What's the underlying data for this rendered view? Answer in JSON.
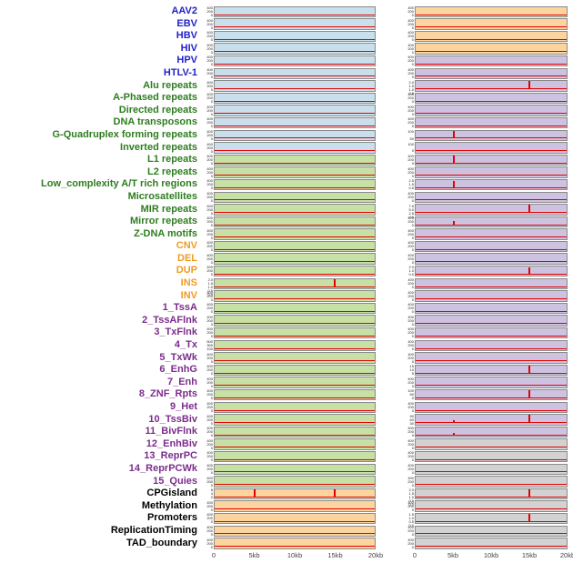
{
  "chart_data": {
    "type": "line",
    "layout": "small-multiples, 44 feature rows x 2 plot columns, red signal line over 20kb window, grid off, no legend",
    "x_ticks": [
      "0",
      "5kb",
      "10kb",
      "15kb",
      "20kb"
    ],
    "x_range_kb": [
      0,
      20
    ],
    "default_yticks": [
      "400",
      "200",
      "0"
    ],
    "colors": {
      "label": {
        "virus": "#2222cc",
        "repeat": "#2e7d1f",
        "sv": "#f09b1f",
        "chromhmm": "#7b2d8b",
        "other": "#000000"
      },
      "panel": {
        "blue": "#c9dfeb",
        "green": "#c6e0a5",
        "orange": "#fcd4a0",
        "purple": "#cdc3e0",
        "gray": "#d2d2d2"
      },
      "signal": "#e60000"
    },
    "rows": [
      {
        "label": "AAV2",
        "group": "virus",
        "left": {
          "bg": "blue",
          "spikes": []
        },
        "right": {
          "bg": "orange",
          "spikes": []
        }
      },
      {
        "label": "EBV",
        "group": "virus",
        "left": {
          "bg": "blue",
          "spikes": []
        },
        "right": {
          "bg": "orange",
          "spikes": []
        }
      },
      {
        "label": "HBV",
        "group": "virus",
        "left": {
          "bg": "blue",
          "spikes": []
        },
        "right": {
          "bg": "orange",
          "spikes": []
        }
      },
      {
        "label": "HIV",
        "group": "virus",
        "left": {
          "bg": "blue",
          "spikes": []
        },
        "right": {
          "bg": "orange",
          "spikes": []
        }
      },
      {
        "label": "HPV",
        "group": "virus",
        "left": {
          "bg": "blue",
          "spikes": []
        },
        "right": {
          "bg": "purple",
          "spikes": []
        }
      },
      {
        "label": "HTLV-1",
        "group": "virus",
        "left": {
          "bg": "blue",
          "spikes": []
        },
        "right": {
          "bg": "purple",
          "spikes": []
        }
      },
      {
        "label": "Alu repeats",
        "group": "repeat",
        "left": {
          "bg": "blue",
          "spikes": []
        },
        "right": {
          "bg": "purple",
          "yticks": [
            "2.0",
            "1.5",
            "1.0",
            "0.5"
          ],
          "spikes": [
            {
              "x": 15,
              "h": 0.9
            }
          ]
        }
      },
      {
        "label": "A-Phased repeats",
        "group": "repeat",
        "left": {
          "bg": "blue",
          "spikes": []
        },
        "right": {
          "bg": "purple",
          "spikes": []
        }
      },
      {
        "label": "Directed repeats",
        "group": "repeat",
        "left": {
          "bg": "blue",
          "spikes": []
        },
        "right": {
          "bg": "purple",
          "spikes": []
        }
      },
      {
        "label": "DNA transposons",
        "group": "repeat",
        "left": {
          "bg": "blue",
          "spikes": []
        },
        "right": {
          "bg": "purple",
          "spikes": []
        }
      },
      {
        "label": "G-Quadruplex forming repeats",
        "group": "repeat",
        "left": {
          "bg": "blue",
          "spikes": []
        },
        "right": {
          "bg": "purple",
          "yticks": [
            "100",
            "50"
          ],
          "spikes": [
            {
              "x": 5,
              "h": 0.85
            }
          ]
        }
      },
      {
        "label": "Inverted repeats",
        "group": "repeat",
        "left": {
          "bg": "blue",
          "spikes": []
        },
        "right": {
          "bg": "purple",
          "yticks": [
            "100",
            "0"
          ],
          "spikes": []
        }
      },
      {
        "label": "L1 repeats",
        "group": "repeat",
        "left": {
          "bg": "green",
          "spikes": []
        },
        "right": {
          "bg": "purple",
          "spikes": [
            {
              "x": 5,
              "h": 0.8
            }
          ]
        }
      },
      {
        "label": "L2 repeats",
        "group": "repeat",
        "left": {
          "bg": "green",
          "spikes": []
        },
        "right": {
          "bg": "purple",
          "spikes": []
        }
      },
      {
        "label": "Low_complexity A/T rich regions",
        "group": "repeat",
        "left": {
          "bg": "green",
          "spikes": []
        },
        "right": {
          "bg": "purple",
          "yticks": [
            "2.5",
            "1.5",
            "0.5"
          ],
          "spikes": [
            {
              "x": 5,
              "h": 0.75
            }
          ]
        }
      },
      {
        "label": "Microsatellites",
        "group": "repeat",
        "left": {
          "bg": "green",
          "spikes": []
        },
        "right": {
          "bg": "purple",
          "spikes": []
        }
      },
      {
        "label": "MIR repeats",
        "group": "repeat",
        "left": {
          "bg": "green",
          "spikes": []
        },
        "right": {
          "bg": "purple",
          "yticks": [
            "7.5",
            "5.0",
            "2.5",
            "0.0"
          ],
          "spikes": [
            {
              "x": 15,
              "h": 0.85
            }
          ]
        }
      },
      {
        "label": "Mirror repeats",
        "group": "repeat",
        "left": {
          "bg": "green",
          "spikes": []
        },
        "right": {
          "bg": "purple",
          "spikes": [
            {
              "x": 5,
              "h": 0.4
            }
          ]
        }
      },
      {
        "label": "Z-DNA motifs",
        "group": "repeat",
        "left": {
          "bg": "green",
          "spikes": []
        },
        "right": {
          "bg": "purple",
          "spikes": []
        }
      },
      {
        "label": "CNV",
        "group": "sv",
        "left": {
          "bg": "green",
          "spikes": []
        },
        "right": {
          "bg": "purple",
          "spikes": []
        }
      },
      {
        "label": "DEL",
        "group": "sv",
        "left": {
          "bg": "green",
          "spikes": []
        },
        "right": {
          "bg": "purple",
          "spikes": []
        }
      },
      {
        "label": "DUP",
        "group": "sv",
        "left": {
          "bg": "green",
          "spikes": []
        },
        "right": {
          "bg": "purple",
          "yticks": [
            "2.0",
            "1.0",
            "0.0"
          ],
          "spikes": [
            {
              "x": 15,
              "h": 0.8
            }
          ]
        }
      },
      {
        "label": "INS",
        "group": "sv",
        "left": {
          "bg": "green",
          "yticks": [
            "2.0",
            "1.5",
            "1.0",
            "0.5",
            "0.0"
          ],
          "spikes": [
            {
              "x": 15,
              "h": 0.95
            }
          ]
        },
        "right": {
          "bg": "purple",
          "spikes": []
        }
      },
      {
        "label": "INV",
        "group": "sv",
        "left": {
          "bg": "green",
          "spikes": []
        },
        "right": {
          "bg": "purple",
          "spikes": []
        }
      },
      {
        "label": "1_TssA",
        "group": "chromhmm",
        "left": {
          "bg": "green",
          "spikes": []
        },
        "right": {
          "bg": "purple",
          "spikes": []
        }
      },
      {
        "label": "2_TssAFlnk",
        "group": "chromhmm",
        "left": {
          "bg": "green",
          "spikes": []
        },
        "right": {
          "bg": "purple",
          "spikes": []
        }
      },
      {
        "label": "3_TxFlnk",
        "group": "chromhmm",
        "left": {
          "bg": "green",
          "spikes": []
        },
        "right": {
          "bg": "purple",
          "spikes": []
        }
      },
      {
        "label": "4_Tx",
        "group": "chromhmm",
        "left": {
          "bg": "green",
          "yticks": [
            "500",
            "300",
            "100"
          ],
          "spikes": []
        },
        "right": {
          "bg": "purple",
          "spikes": []
        }
      },
      {
        "label": "5_TxWk",
        "group": "chromhmm",
        "left": {
          "bg": "green",
          "spikes": []
        },
        "right": {
          "bg": "purple",
          "spikes": []
        }
      },
      {
        "label": "6_EnhG",
        "group": "chromhmm",
        "left": {
          "bg": "green",
          "spikes": []
        },
        "right": {
          "bg": "purple",
          "yticks": [
            "15",
            "10",
            "5"
          ],
          "spikes": [
            {
              "x": 15,
              "h": 0.85
            }
          ]
        }
      },
      {
        "label": "7_Enh",
        "group": "chromhmm",
        "left": {
          "bg": "green",
          "spikes": []
        },
        "right": {
          "bg": "purple",
          "spikes": []
        }
      },
      {
        "label": "8_ZNF_Rpts",
        "group": "chromhmm",
        "left": {
          "bg": "green",
          "spikes": []
        },
        "right": {
          "bg": "purple",
          "yticks": [
            "100",
            "50",
            "0"
          ],
          "spikes": [
            {
              "x": 15,
              "h": 0.9
            }
          ]
        }
      },
      {
        "label": "9_Het",
        "group": "chromhmm",
        "left": {
          "bg": "green",
          "spikes": []
        },
        "right": {
          "bg": "purple",
          "spikes": []
        }
      },
      {
        "label": "10_TssBiv",
        "group": "chromhmm",
        "left": {
          "bg": "green",
          "spikes": []
        },
        "right": {
          "bg": "purple",
          "yticks": [
            "90",
            "60",
            "30"
          ],
          "spikes": [
            {
              "x": 5,
              "h": 0.3
            },
            {
              "x": 15,
              "h": 0.85
            }
          ]
        }
      },
      {
        "label": "11_BivFlnk",
        "group": "chromhmm",
        "left": {
          "bg": "green",
          "spikes": []
        },
        "right": {
          "bg": "purple",
          "spikes": [
            {
              "x": 5,
              "h": 0.25
            }
          ]
        }
      },
      {
        "label": "12_EnhBiv",
        "group": "chromhmm",
        "left": {
          "bg": "green",
          "spikes": []
        },
        "right": {
          "bg": "gray",
          "spikes": []
        }
      },
      {
        "label": "13_ReprPC",
        "group": "chromhmm",
        "left": {
          "bg": "green",
          "spikes": []
        },
        "right": {
          "bg": "gray",
          "spikes": []
        }
      },
      {
        "label": "14_ReprPCWk",
        "group": "chromhmm",
        "left": {
          "bg": "green",
          "spikes": []
        },
        "right": {
          "bg": "gray",
          "spikes": []
        }
      },
      {
        "label": "15_Quies",
        "group": "chromhmm",
        "left": {
          "bg": "green",
          "spikes": []
        },
        "right": {
          "bg": "gray",
          "spikes": []
        }
      },
      {
        "label": "CPGisland",
        "group": "other",
        "left": {
          "bg": "orange",
          "yticks": [
            "8",
            "4",
            "0"
          ],
          "spikes": [
            {
              "x": 5,
              "h": 0.85
            },
            {
              "x": 15,
              "h": 0.9
            }
          ]
        },
        "right": {
          "bg": "gray",
          "yticks": [
            "2.0",
            "1.5",
            "1.0",
            "0.5",
            "0.0"
          ],
          "spikes": [
            {
              "x": 15,
              "h": 0.85
            }
          ]
        }
      },
      {
        "label": "Methylation",
        "group": "other",
        "left": {
          "bg": "orange",
          "spikes": []
        },
        "right": {
          "bg": "gray",
          "spikes": []
        }
      },
      {
        "label": "Promoters",
        "group": "other",
        "left": {
          "bg": "orange",
          "yticks": [
            "400",
            "200",
            "0"
          ],
          "spikes": []
        },
        "right": {
          "bg": "gray",
          "yticks": [
            "1.5",
            "1.0",
            "0.5",
            "0.0"
          ],
          "spikes": [
            {
              "x": 15,
              "h": 0.9
            }
          ]
        }
      },
      {
        "label": "ReplicationTiming",
        "group": "other",
        "left": {
          "bg": "orange",
          "spikes": []
        },
        "right": {
          "bg": "gray",
          "spikes": []
        }
      },
      {
        "label": "TAD_boundary",
        "group": "other",
        "left": {
          "bg": "orange",
          "spikes": []
        },
        "right": {
          "bg": "gray",
          "spikes": []
        }
      }
    ]
  }
}
